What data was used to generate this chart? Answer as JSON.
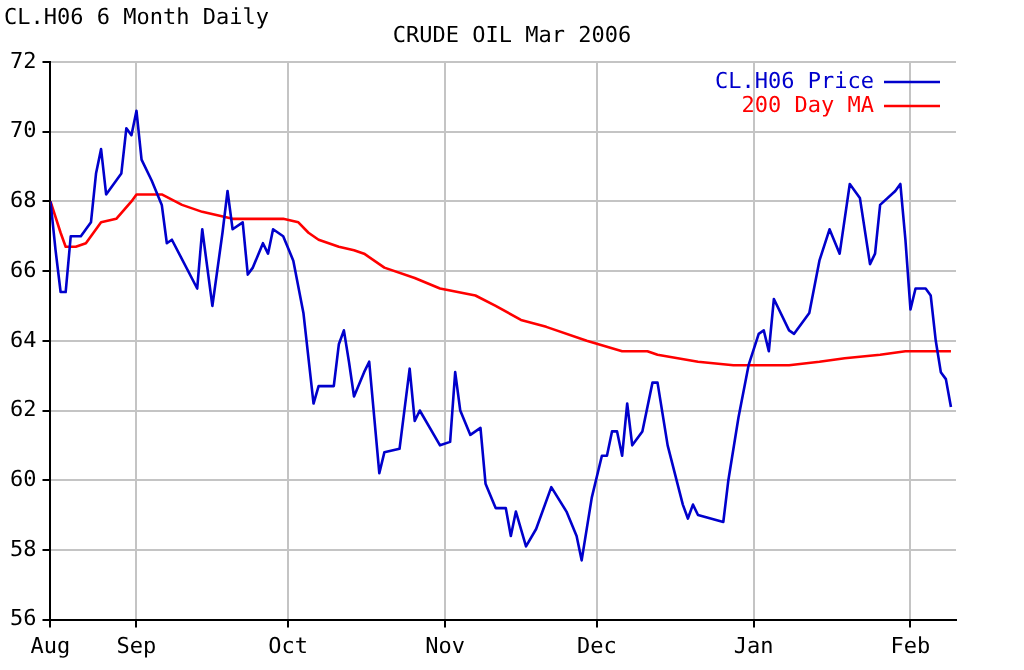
{
  "chart_data": {
    "type": "line",
    "title": "CRUDE OIL Mar 2006",
    "subtitle": "CL.H06 6 Month Daily",
    "xlim": [
      "2005-08-15",
      "2006-02-10"
    ],
    "xticks": [
      {
        "value": "2005-08-15",
        "label": "Aug"
      },
      {
        "value": "2005-09-01",
        "label": "Sep"
      },
      {
        "value": "2005-10-01",
        "label": "Oct"
      },
      {
        "value": "2005-11-01",
        "label": "Nov"
      },
      {
        "value": "2005-12-01",
        "label": "Dec"
      },
      {
        "value": "2006-01-01",
        "label": "Jan"
      },
      {
        "value": "2006-02-01",
        "label": "Feb"
      }
    ],
    "ylim": [
      56,
      72
    ],
    "yticks": [
      56,
      58,
      60,
      62,
      64,
      66,
      68,
      70,
      72
    ],
    "grid": true,
    "legend": "top right",
    "series": [
      {
        "name": "CL.H06 Price",
        "color": "#0000cc",
        "x": [
          "2005-08-15",
          "2005-08-16",
          "2005-08-17",
          "2005-08-18",
          "2005-08-19",
          "2005-08-21",
          "2005-08-23",
          "2005-08-24",
          "2005-08-25",
          "2005-08-26",
          "2005-08-29",
          "2005-08-30",
          "2005-08-31",
          "2005-09-01",
          "2005-09-02",
          "2005-09-04",
          "2005-09-06",
          "2005-09-07",
          "2005-09-08",
          "2005-09-13",
          "2005-09-14",
          "2005-09-16",
          "2005-09-18",
          "2005-09-19",
          "2005-09-20",
          "2005-09-22",
          "2005-09-23",
          "2005-09-24",
          "2005-09-26",
          "2005-09-27",
          "2005-09-28",
          "2005-09-30",
          "2005-10-02",
          "2005-10-04",
          "2005-10-06",
          "2005-10-07",
          "2005-10-10",
          "2005-10-11",
          "2005-10-12",
          "2005-10-13",
          "2005-10-14",
          "2005-10-16",
          "2005-10-17",
          "2005-10-18",
          "2005-10-19",
          "2005-10-20",
          "2005-10-23",
          "2005-10-25",
          "2005-10-26",
          "2005-10-27",
          "2005-10-31",
          "2005-11-02",
          "2005-11-03",
          "2005-11-04",
          "2005-11-06",
          "2005-11-08",
          "2005-11-09",
          "2005-11-11",
          "2005-11-13",
          "2005-11-14",
          "2005-11-15",
          "2005-11-17",
          "2005-11-19",
          "2005-11-22",
          "2005-11-25",
          "2005-11-27",
          "2005-11-28",
          "2005-11-30",
          "2005-12-02",
          "2005-12-03",
          "2005-12-04",
          "2005-12-05",
          "2005-12-06",
          "2005-12-07",
          "2005-12-08",
          "2005-12-10",
          "2005-12-12",
          "2005-12-13",
          "2005-12-15",
          "2005-12-18",
          "2005-12-19",
          "2005-12-20",
          "2005-12-21",
          "2005-12-26",
          "2005-12-27",
          "2005-12-29",
          "2005-12-31",
          "2006-01-02",
          "2006-01-03",
          "2006-01-04",
          "2006-01-05",
          "2006-01-08",
          "2006-01-09",
          "2006-01-12",
          "2006-01-14",
          "2006-01-16",
          "2006-01-18",
          "2006-01-20",
          "2006-01-22",
          "2006-01-24",
          "2006-01-25",
          "2006-01-26",
          "2006-01-29",
          "2006-01-30",
          "2006-01-31",
          "2006-02-01",
          "2006-02-02",
          "2006-02-04",
          "2006-02-05",
          "2006-02-06",
          "2006-02-07",
          "2006-02-08",
          "2006-02-09"
        ],
        "values": [
          68.0,
          66.6,
          65.4,
          65.4,
          67.0,
          67.0,
          67.4,
          68.8,
          69.5,
          68.2,
          68.8,
          70.1,
          69.9,
          70.6,
          69.2,
          68.6,
          67.9,
          66.8,
          66.9,
          65.5,
          67.2,
          65.0,
          67.1,
          68.3,
          67.2,
          67.4,
          65.9,
          66.1,
          66.8,
          66.5,
          67.2,
          67.0,
          66.3,
          64.8,
          62.2,
          62.7,
          62.7,
          63.9,
          64.3,
          63.4,
          62.4,
          63.1,
          63.4,
          61.8,
          60.2,
          60.8,
          60.9,
          63.2,
          61.7,
          62.0,
          61.0,
          61.1,
          63.1,
          62.0,
          61.3,
          61.5,
          59.9,
          59.2,
          59.2,
          58.4,
          59.1,
          58.1,
          58.6,
          59.8,
          59.1,
          58.4,
          57.7,
          59.5,
          60.7,
          60.7,
          61.4,
          61.4,
          60.7,
          62.2,
          61.0,
          61.4,
          62.8,
          62.8,
          61.0,
          59.3,
          58.9,
          59.3,
          59.0,
          58.8,
          60.0,
          61.8,
          63.3,
          64.2,
          64.3,
          63.7,
          65.2,
          64.3,
          64.2,
          64.8,
          66.3,
          67.2,
          66.5,
          68.5,
          68.1,
          66.2,
          66.5,
          67.9,
          68.3,
          68.5,
          66.9,
          64.9,
          65.5,
          65.5,
          65.3,
          64.0,
          63.1,
          62.9,
          62.1
        ]
      },
      {
        "name": "200 Day MA",
        "color": "#ff0000",
        "x": [
          "2005-08-15",
          "2005-08-17",
          "2005-08-18",
          "2005-08-20",
          "2005-08-22",
          "2005-08-25",
          "2005-08-28",
          "2005-08-31",
          "2005-09-01",
          "2005-09-06",
          "2005-09-10",
          "2005-09-14",
          "2005-09-20",
          "2005-09-30",
          "2005-10-03",
          "2005-10-05",
          "2005-10-07",
          "2005-10-11",
          "2005-10-14",
          "2005-10-16",
          "2005-10-20",
          "2005-10-26",
          "2005-10-31",
          "2005-11-07",
          "2005-11-11",
          "2005-11-16",
          "2005-11-21",
          "2005-11-29",
          "2005-12-06",
          "2005-12-11",
          "2005-12-13",
          "2005-12-21",
          "2005-12-28",
          "2006-01-08",
          "2006-01-14",
          "2006-01-19",
          "2006-01-26",
          "2006-01-31",
          "2006-02-09"
        ],
        "values": [
          68.0,
          67.1,
          66.7,
          66.7,
          66.8,
          67.4,
          67.5,
          68.0,
          68.2,
          68.2,
          67.9,
          67.7,
          67.5,
          67.5,
          67.4,
          67.1,
          66.9,
          66.7,
          66.6,
          66.5,
          66.1,
          65.8,
          65.5,
          65.3,
          65.0,
          64.6,
          64.4,
          64.0,
          63.7,
          63.7,
          63.6,
          63.4,
          63.3,
          63.3,
          63.4,
          63.5,
          63.6,
          63.7,
          63.7
        ]
      }
    ]
  }
}
